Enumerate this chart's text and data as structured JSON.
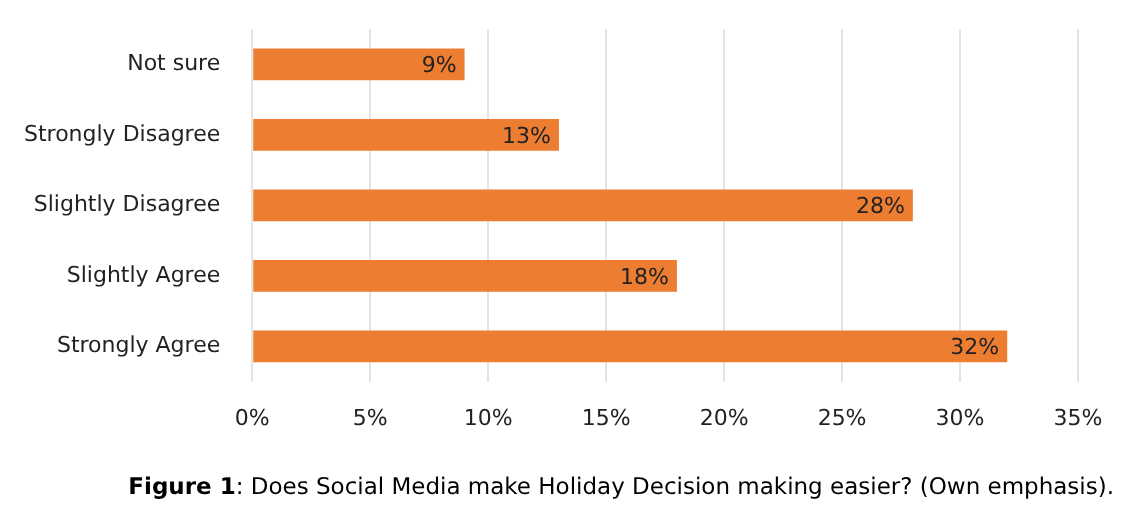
{
  "chart_data": {
    "type": "bar",
    "orientation": "horizontal",
    "categories": [
      "Not sure",
      "Strongly Disagree",
      "Slightly Disagree",
      "Slightly Agree",
      "Strongly Agree"
    ],
    "values": [
      9,
      13,
      28,
      18,
      32
    ],
    "value_labels": [
      "9%",
      "13%",
      "28%",
      "18%",
      "32%"
    ],
    "color": "#ed7d31",
    "xlim": [
      0,
      35
    ],
    "xticks": [
      {
        "value": 0,
        "label": "0%"
      },
      {
        "value": 5,
        "label": "5%"
      },
      {
        "value": 10,
        "label": "10%"
      },
      {
        "value": 15,
        "label": "15%"
      },
      {
        "value": 20,
        "label": "20%"
      },
      {
        "value": 25,
        "label": "25%"
      },
      {
        "value": 30,
        "label": "30%"
      },
      {
        "value": 35,
        "label": "35%"
      }
    ],
    "grid": "x",
    "annotations": [
      "Figure 1: Does Social Media make Holiday Decision making easier? (Own emphasis)."
    ]
  }
}
